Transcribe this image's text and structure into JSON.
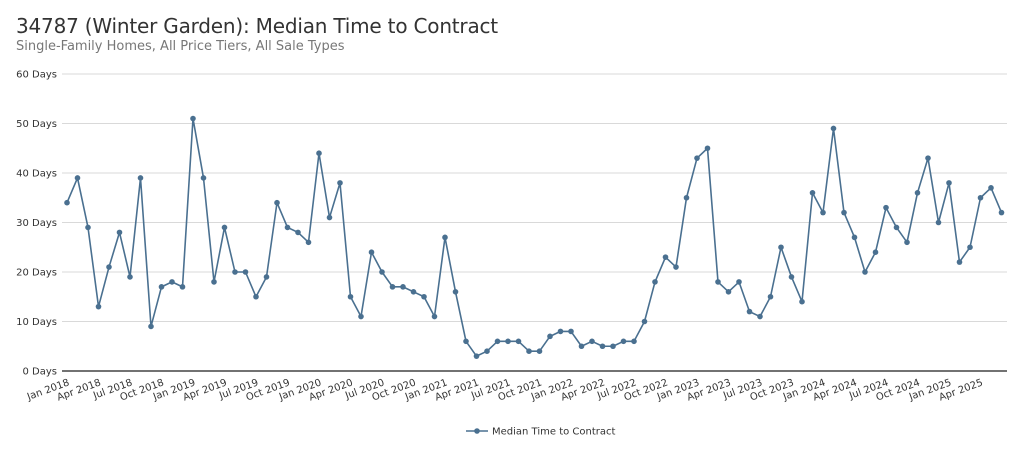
{
  "chart_data": {
    "type": "line",
    "title": "34787 (Winter Garden): Median Time to Contract",
    "subtitle": "Single-Family Homes, All Price Tiers, All Sale Types",
    "ylabel": "",
    "xlabel": "",
    "ylim": [
      0,
      60
    ],
    "y_ticks": [
      "0 Days",
      "10 Days",
      "20 Days",
      "30 Days",
      "40 Days",
      "50 Days",
      "60 Days"
    ],
    "x_start": "Jan 2018",
    "x_ticks": [
      "Jan 2018",
      "Apr 2018",
      "Jul 2018",
      "Oct 2018",
      "Jan 2019",
      "Apr 2019",
      "Jul 2019",
      "Oct 2019",
      "Jan 2020",
      "Apr 2020",
      "Jul 2020",
      "Oct 2020",
      "Jan 2021",
      "Apr 2021",
      "Jul 2021",
      "Oct 2021",
      "Jan 2022",
      "Apr 2022",
      "Jul 2022",
      "Oct 2022",
      "Jan 2023",
      "Apr 2023",
      "Jul 2023",
      "Oct 2023",
      "Jan 2024",
      "Apr 2024",
      "Jul 2024",
      "Oct 2024",
      "Jan 2025",
      "Apr 2025"
    ],
    "grid": true,
    "legend": "bottom-center",
    "series": [
      {
        "name": "Median Time to Contract",
        "color": "#4a7090",
        "values": [
          34,
          39,
          29,
          13,
          21,
          28,
          19,
          39,
          9,
          17,
          18,
          17,
          51,
          39,
          18,
          29,
          20,
          20,
          15,
          19,
          34,
          29,
          28,
          26,
          44,
          31,
          38,
          15,
          11,
          24,
          20,
          17,
          17,
          16,
          15,
          11,
          27,
          16,
          6,
          3,
          4,
          6,
          6,
          6,
          4,
          4,
          7,
          8,
          8,
          5,
          6,
          5,
          5,
          6,
          6,
          10,
          18,
          23,
          21,
          35,
          43,
          45,
          18,
          16,
          18,
          12,
          11,
          15,
          25,
          19,
          14,
          36,
          32,
          49,
          32,
          27,
          20,
          24,
          33,
          29,
          26,
          36,
          43,
          30,
          38,
          22,
          25,
          35,
          37,
          32
        ]
      }
    ]
  }
}
